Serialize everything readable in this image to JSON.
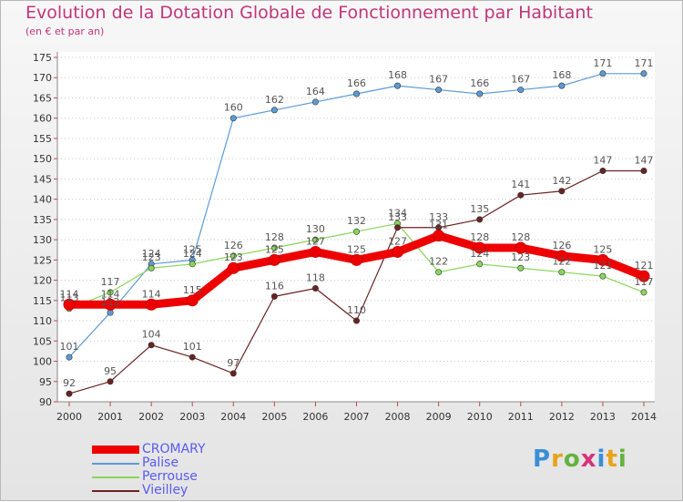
{
  "title": "Evolution de la Dotation Globale de Fonctionnement par Habitant",
  "subtitle": "(en € et par an)",
  "logo": [
    "P",
    "r",
    "o",
    "x",
    "i",
    "t",
    "i"
  ],
  "chart_data": {
    "type": "line",
    "title": "Evolution de la Dotation Globale de Fonctionnement par Habitant",
    "subtitle": "(en € et par an)",
    "xlabel": "",
    "ylabel": "",
    "categories": [
      "2000",
      "2001",
      "2002",
      "2003",
      "2004",
      "2005",
      "2006",
      "2007",
      "2008",
      "2009",
      "2010",
      "2011",
      "2012",
      "2013",
      "2014"
    ],
    "ylim": [
      90,
      175
    ],
    "yticks": [
      90,
      95,
      100,
      105,
      110,
      115,
      120,
      125,
      130,
      135,
      140,
      145,
      150,
      155,
      160,
      165,
      170,
      175
    ],
    "grid": "horizontal dotted",
    "legend_position": "bottom-left",
    "series": [
      {
        "name": "CROMARY",
        "color": "#ee0000",
        "values": [
          114,
          114,
          114,
          115,
          123,
          125,
          127,
          125,
          127,
          131,
          128,
          128,
          126,
          125,
          121
        ]
      },
      {
        "name": "Palise",
        "color": "#5b9bd5",
        "values": [
          101,
          112,
          124,
          125,
          160,
          162,
          164,
          166,
          168,
          167,
          166,
          167,
          168,
          171,
          171
        ]
      },
      {
        "name": "Perrouse",
        "color": "#88d65a",
        "values": [
          113,
          117,
          123,
          124,
          126,
          128,
          130,
          132,
          134,
          122,
          124,
          123,
          122,
          121,
          117
        ]
      },
      {
        "name": "Vieilley",
        "color": "#6b2222",
        "values": [
          92,
          95,
          104,
          101,
          97,
          116,
          118,
          110,
          133,
          133,
          135,
          141,
          142,
          147,
          147
        ]
      }
    ]
  }
}
